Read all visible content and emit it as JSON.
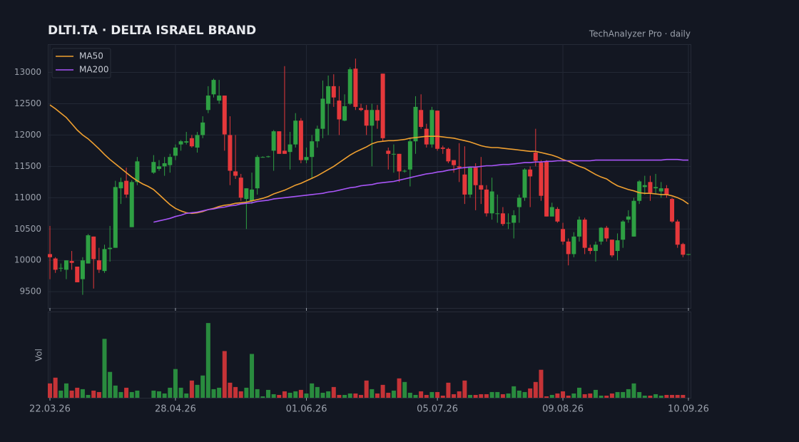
{
  "chart_data": {
    "type": "candlestick",
    "title": "DLTI.TA  ·  DELTA ISRAEL BRAND",
    "subtitle": "TechAnalyzer Pro · daily",
    "categories": [
      "22.03.26",
      null,
      null,
      null,
      null,
      null,
      null,
      null,
      null,
      null,
      null,
      null,
      null,
      null,
      null,
      null,
      null,
      null,
      null,
      null,
      null,
      null,
      null,
      "28.04.26",
      null,
      null,
      null,
      null,
      null,
      null,
      null,
      null,
      null,
      null,
      null,
      null,
      null,
      null,
      null,
      null,
      null,
      null,
      null,
      null,
      null,
      null,
      null,
      "01.06.26",
      null,
      null,
      null,
      null,
      null,
      null,
      null,
      null,
      null,
      null,
      null,
      null,
      null,
      null,
      null,
      null,
      null,
      null,
      null,
      null,
      null,
      null,
      null,
      "05.07.26",
      null,
      null,
      null,
      null,
      null,
      null,
      null,
      null,
      null,
      null,
      null,
      null,
      null,
      null,
      null,
      null,
      null,
      null,
      null,
      null,
      null,
      null,
      "09.08.26",
      null,
      null,
      null,
      null,
      null,
      null,
      null,
      null,
      null,
      null,
      null,
      null,
      null,
      null,
      null,
      null,
      null,
      null,
      null,
      null,
      null,
      null,
      "10.09.26"
    ],
    "open": [
      10100,
      10030,
      9870,
      9850,
      9990,
      9900,
      9700,
      9950,
      10380,
      10000,
      9830,
      10180,
      10200,
      11150,
      11270,
      10530,
      11250,
      null,
      null,
      11400,
      11460,
      11500,
      11520,
      11670,
      11850,
      11880,
      11950,
      11800,
      12000,
      12400,
      12650,
      12550,
      12630,
      12000,
      11420,
      11320,
      10980,
      10950,
      11150,
      11650,
      11650,
      11750,
      12060,
      11750,
      11730,
      11850,
      12230,
      11600,
      11650,
      11900,
      12100,
      12500,
      12780,
      12550,
      12230,
      12500,
      13060,
      12430,
      12400,
      12150,
      12400,
      12980,
      11750,
      11700,
      11700,
      11420,
      11450,
      11900,
      12400,
      12100,
      11850,
      12390,
      11800,
      11780,
      11600,
      11500,
      11370,
      11050,
      11480,
      11200,
      11130,
      10750,
      10750,
      10750,
      10600,
      10600,
      10850,
      11000,
      11450,
      11720,
      11560,
      11580,
      10700,
      10820,
      10500,
      10300,
      10100,
      10380,
      10650,
      10200,
      10150,
      10300,
      10520,
      10330,
      10150,
      10330,
      10650,
      10380,
      10950,
      11170,
      11250,
      11150,
      11100,
      11150,
      10980,
      10620,
      10260,
      10090
    ],
    "high": [
      10550,
      10050,
      9950,
      10000,
      10150,
      9900,
      10050,
      10420,
      10380,
      10200,
      10250,
      10550,
      11270,
      11320,
      11480,
      11280,
      11650,
      null,
      null,
      11680,
      11600,
      11650,
      11700,
      11850,
      11920,
      12050,
      12000,
      12050,
      12300,
      12780,
      12900,
      12880,
      12630,
      12300,
      12000,
      11380,
      11150,
      11400,
      11680,
      11660,
      11670,
      12080,
      12060,
      13100,
      12050,
      12350,
      12270,
      11800,
      12000,
      12150,
      12870,
      12950,
      12970,
      12780,
      12650,
      13080,
      13220,
      12500,
      12480,
      12500,
      12480,
      12980,
      11800,
      11850,
      11700,
      11450,
      11950,
      12620,
      12650,
      12180,
      12450,
      12390,
      11830,
      11800,
      11600,
      11870,
      11820,
      11500,
      11550,
      11650,
      11200,
      11320,
      11050,
      10850,
      10750,
      10800,
      11050,
      11470,
      11500,
      12100,
      11600,
      11600,
      10920,
      10850,
      10600,
      10350,
      10450,
      10700,
      10680,
      10250,
      10300,
      10530,
      10550,
      10330,
      10430,
      10640,
      10800,
      11000,
      11280,
      11350,
      11350,
      11380,
      11250,
      11200,
      11000,
      10650,
      10280,
      10100
    ],
    "low": [
      9700,
      9800,
      9820,
      9700,
      9850,
      9650,
      9450,
      9950,
      9550,
      9800,
      9800,
      9980,
      10200,
      10900,
      11000,
      10530,
      11200,
      null,
      null,
      11380,
      11430,
      11350,
      11400,
      11600,
      11750,
      11850,
      11800,
      11720,
      11950,
      12350,
      12600,
      12500,
      11750,
      11200,
      11300,
      10950,
      10500,
      10900,
      11050,
      11640,
      11640,
      11430,
      11700,
      11700,
      11450,
      11800,
      11550,
      11550,
      11300,
      11800,
      11950,
      12000,
      12450,
      12000,
      12220,
      12480,
      12400,
      12380,
      12000,
      11500,
      12100,
      11900,
      11450,
      11400,
      11250,
      11400,
      11180,
      11700,
      12100,
      11800,
      11800,
      11750,
      11700,
      11550,
      11400,
      11250,
      10900,
      11000,
      10800,
      10900,
      10700,
      10650,
      10600,
      10550,
      10500,
      10350,
      10600,
      10950,
      10850,
      11500,
      10950,
      10700,
      10700,
      10600,
      10250,
      9920,
      10050,
      10300,
      10100,
      10100,
      9980,
      10250,
      10300,
      10050,
      10000,
      10200,
      10600,
      10380,
      10900,
      11050,
      10950,
      11050,
      11000,
      11000,
      10600,
      10200,
      10050,
      10080
    ],
    "close": [
      10050,
      9850,
      9880,
      10000,
      9960,
      9650,
      10000,
      10400,
      10020,
      9850,
      10180,
      10200,
      11170,
      11250,
      11050,
      11250,
      11580,
      null,
      null,
      11570,
      11500,
      11550,
      11650,
      11800,
      11900,
      11900,
      11820,
      12000,
      12200,
      12630,
      12880,
      12630,
      12010,
      11430,
      11350,
      11000,
      11150,
      11130,
      11650,
      11650,
      11660,
      12060,
      11700,
      11700,
      11850,
      12230,
      11600,
      11650,
      11900,
      12100,
      12580,
      12780,
      12600,
      12250,
      12460,
      13050,
      12450,
      12400,
      12150,
      12400,
      12230,
      11950,
      11700,
      11700,
      11420,
      11430,
      11900,
      12450,
      12130,
      11850,
      12400,
      11780,
      11780,
      11580,
      11520,
      11480,
      11050,
      11480,
      11200,
      11130,
      10750,
      11100,
      10750,
      10580,
      10600,
      10720,
      11000,
      11450,
      11340,
      11590,
      11030,
      10700,
      10850,
      10620,
      10300,
      10100,
      10380,
      10650,
      10200,
      10150,
      10250,
      10520,
      10350,
      10080,
      10320,
      10620,
      10700,
      10950,
      11260,
      11200,
      11080,
      11170,
      11150,
      11050,
      10620,
      10250,
      10090,
      10100
    ],
    "up_color": "#2ea043",
    "down_color": "#e5383b",
    "ylim": [
      9240,
      13450
    ],
    "yticks": [
      9500,
      10000,
      10500,
      11000,
      11500,
      12000,
      12500,
      13000
    ],
    "grid": true,
    "legend": "upper left",
    "series": [
      {
        "name": "MA50",
        "color": "#f0a030",
        "values": [
          12480,
          12420,
          12350,
          12280,
          12180,
          12080,
          12000,
          11940,
          11860,
          11780,
          11690,
          11610,
          11540,
          11470,
          11400,
          11330,
          11270,
          11220,
          11180,
          11130,
          11050,
          10970,
          10890,
          10830,
          10790,
          10760,
          10750,
          10760,
          10780,
          10810,
          10830,
          10860,
          10880,
          10890,
          10910,
          10920,
          10930,
          10950,
          10970,
          10990,
          11020,
          11060,
          11090,
          11120,
          11160,
          11200,
          11230,
          11270,
          11310,
          11350,
          11400,
          11450,
          11500,
          11560,
          11620,
          11680,
          11730,
          11770,
          11810,
          11860,
          11890,
          11900,
          11910,
          11910,
          11920,
          11930,
          11950,
          11960,
          11970,
          11980,
          11980,
          11980,
          11970,
          11960,
          11950,
          11930,
          11910,
          11890,
          11860,
          11830,
          11810,
          11800,
          11800,
          11790,
          11780,
          11770,
          11760,
          11750,
          11740,
          11740,
          11720,
          11700,
          11680,
          11650,
          11610,
          11580,
          11540,
          11500,
          11470,
          11420,
          11370,
          11330,
          11300,
          11240,
          11190,
          11160,
          11130,
          11110,
          11080,
          11070,
          11070,
          11060,
          11050,
          11050,
          11030,
          11000,
          10960,
          10900
        ]
      },
      {
        "name": "MA200",
        "color": "#a855f7",
        "values": [
          null,
          null,
          null,
          null,
          null,
          null,
          null,
          null,
          null,
          null,
          null,
          null,
          null,
          null,
          null,
          null,
          null,
          null,
          null,
          10610,
          10630,
          10650,
          10670,
          10700,
          10720,
          10750,
          10760,
          10770,
          10790,
          10810,
          10820,
          10840,
          10850,
          10870,
          10880,
          10900,
          10910,
          10920,
          10940,
          10950,
          10960,
          10980,
          10990,
          11000,
          11010,
          11020,
          11030,
          11040,
          11050,
          11060,
          11070,
          11090,
          11100,
          11120,
          11140,
          11160,
          11170,
          11190,
          11200,
          11210,
          11230,
          11240,
          11250,
          11260,
          11280,
          11300,
          11320,
          11340,
          11360,
          11380,
          11390,
          11410,
          11420,
          11440,
          11450,
          11470,
          11480,
          11490,
          11490,
          11500,
          11510,
          11510,
          11520,
          11530,
          11530,
          11540,
          11550,
          11560,
          11560,
          11570,
          11570,
          11580,
          11580,
          11590,
          11590,
          11590,
          11590,
          11590,
          11590,
          11590,
          11600,
          11600,
          11600,
          11600,
          11600,
          11600,
          11600,
          11600,
          11600,
          11600,
          11600,
          11600,
          11600,
          11610,
          11610,
          11610,
          11600,
          11600
        ]
      }
    ],
    "volume": {
      "label": "Vol",
      "ylim": [
        0,
        120
      ],
      "values": [
        20,
        28,
        10,
        20,
        10,
        14,
        12,
        4,
        10,
        8,
        82,
        36,
        17,
        8,
        14,
        8,
        10,
        null,
        null,
        10,
        9,
        6,
        14,
        40,
        14,
        6,
        24,
        18,
        31,
        104,
        12,
        14,
        65,
        21,
        15,
        9,
        14,
        61,
        12,
        2,
        11,
        5,
        4,
        9,
        7,
        9,
        11,
        6,
        20,
        15,
        7,
        9,
        15,
        4,
        4,
        6,
        6,
        4,
        24,
        12,
        6,
        18,
        7,
        10,
        27,
        22,
        7,
        4,
        9,
        4,
        8,
        8,
        3,
        21,
        5,
        9,
        24,
        4,
        4,
        5,
        5,
        8,
        8,
        5,
        6,
        16,
        10,
        8,
        13,
        22,
        39,
        2,
        4,
        6,
        9,
        3,
        6,
        14,
        5,
        6,
        11,
        3,
        3,
        6,
        8,
        8,
        12,
        20,
        8,
        3,
        3,
        5,
        3,
        4,
        4,
        4,
        4,
        0
      ]
    }
  }
}
